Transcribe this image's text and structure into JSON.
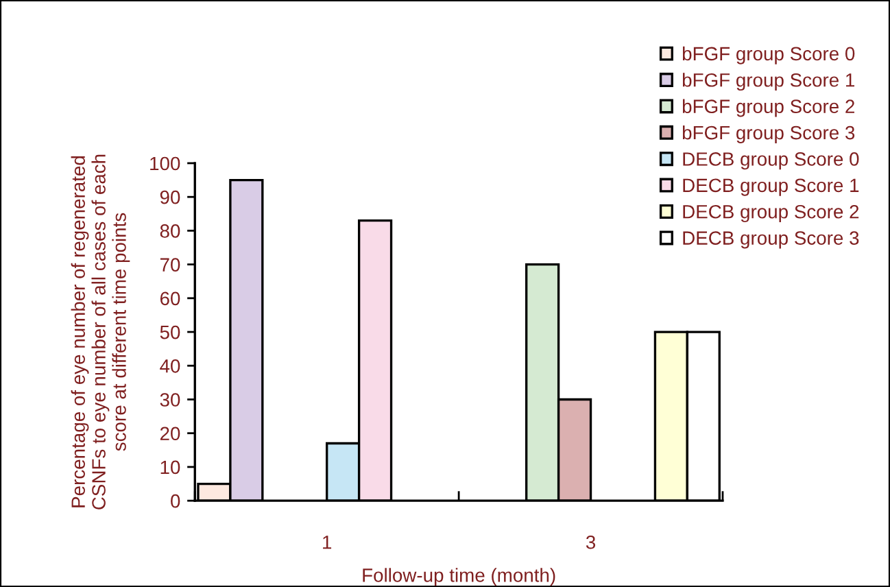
{
  "chart_data": {
    "type": "bar",
    "xlabel": "Follow-up time (month)",
    "ylabel": "Percentage of eye number of regenerated\nCSNFs to eye number of all cases of each\nscore at different time points",
    "categories": [
      "1",
      "3"
    ],
    "series": [
      {
        "name": "bFGF group Score 0",
        "color": "#fde9e0",
        "values": [
          5,
          null
        ]
      },
      {
        "name": "bFGF group Score 1",
        "color": "#d9cce6",
        "values": [
          95,
          null
        ]
      },
      {
        "name": "bFGF group Score 2",
        "color": "#d5ead2",
        "values": [
          null,
          70
        ]
      },
      {
        "name": "bFGF group Score 3",
        "color": "#dbb0b0",
        "values": [
          null,
          30
        ]
      },
      {
        "name": "DECB group Score 0",
        "color": "#c6e6f5",
        "values": [
          17,
          null
        ]
      },
      {
        "name": "DECB group Score 1",
        "color": "#f9dbe8",
        "values": [
          83,
          null
        ]
      },
      {
        "name": "DECB group Score 2",
        "color": "#ffffd6",
        "values": [
          null,
          50
        ]
      },
      {
        "name": "DECB group Score 3",
        "color": "#ffffff",
        "values": [
          null,
          50
        ]
      }
    ],
    "ylim": [
      0,
      100
    ],
    "yticks": [
      0,
      10,
      20,
      30,
      40,
      50,
      60,
      70,
      80,
      90,
      100
    ],
    "grid": false,
    "legend": "top right"
  }
}
